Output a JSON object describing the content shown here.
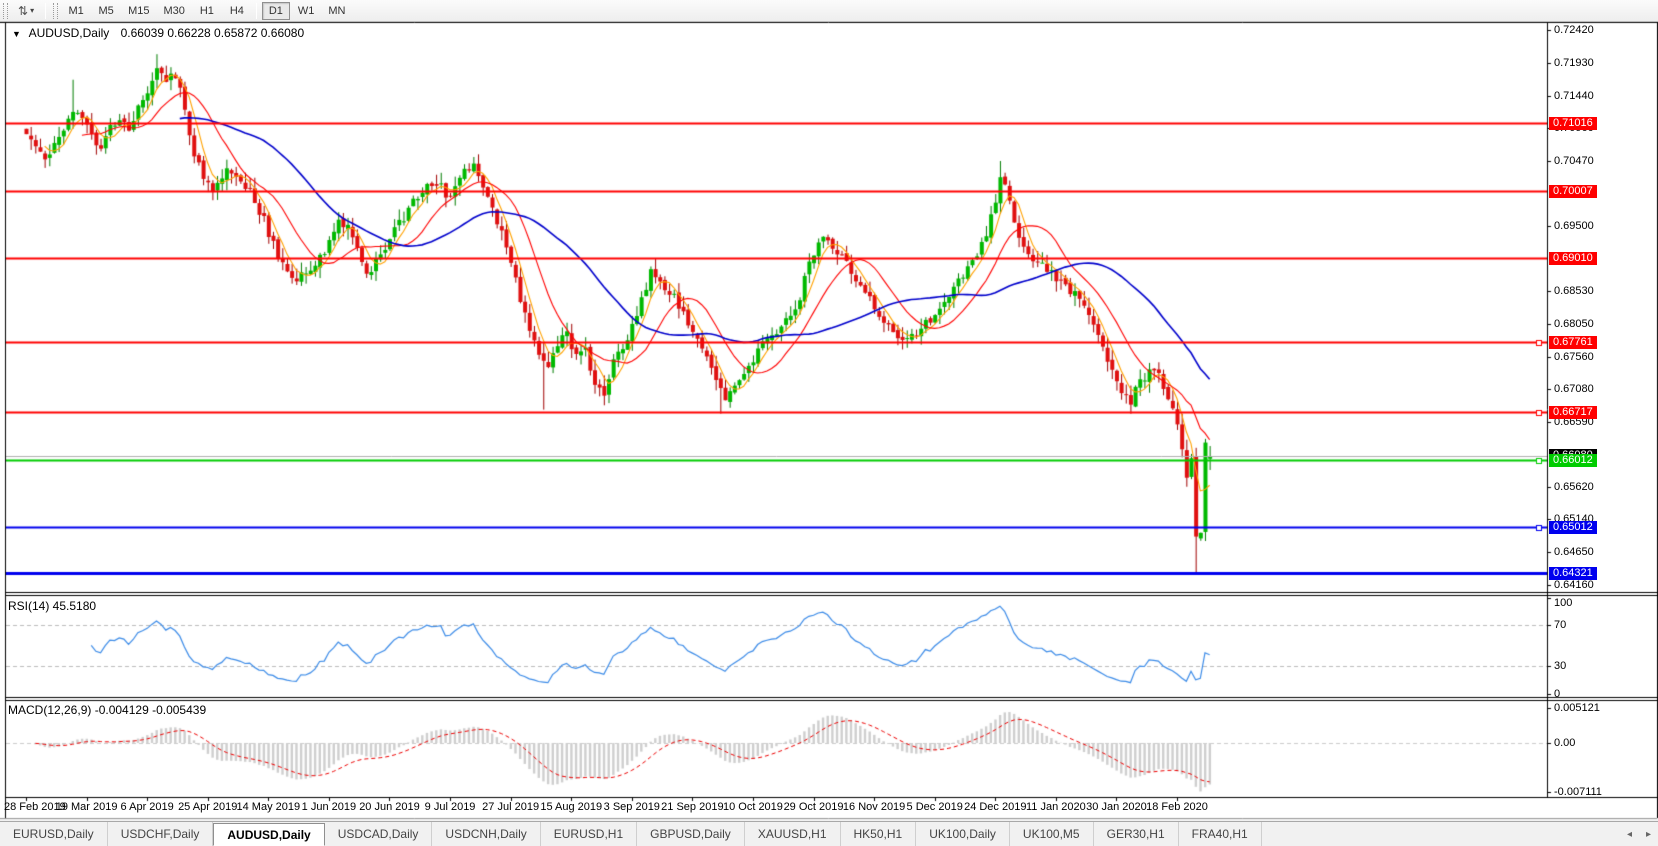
{
  "toolbar": {
    "chart_options_icon": "chart-options-icon",
    "timeframes": [
      "M1",
      "M5",
      "M15",
      "M30",
      "H1",
      "H4",
      "D1",
      "W1",
      "MN"
    ],
    "active_timeframe": "D1"
  },
  "chart": {
    "title_symbol": "AUDUSD,Daily",
    "title_ohlc": "0.66039 0.66228 0.65872 0.66080",
    "last_bar": {
      "open": 0.66039,
      "high": 0.66228,
      "low": 0.65872,
      "close": 0.6608
    }
  },
  "price_axis": {
    "ticks": [
      {
        "label": "0.72420",
        "value": 0.7242
      },
      {
        "label": "0.71930",
        "value": 0.7193
      },
      {
        "label": "0.71440",
        "value": 0.7144
      },
      {
        "label": "0.70960",
        "value": 0.7096
      },
      {
        "label": "0.70470",
        "value": 0.7047
      },
      {
        "label": "0.69500",
        "value": 0.695
      },
      {
        "label": "0.68530",
        "value": 0.6853
      },
      {
        "label": "0.68050",
        "value": 0.6805
      },
      {
        "label": "0.67560",
        "value": 0.6756
      },
      {
        "label": "0.67080",
        "value": 0.6708
      },
      {
        "label": "0.66590",
        "value": 0.6659
      },
      {
        "label": "0.65620",
        "value": 0.6562
      },
      {
        "label": "0.65140",
        "value": 0.6514
      },
      {
        "label": "0.64650",
        "value": 0.6465
      },
      {
        "label": "0.64160",
        "value": 0.6416
      }
    ]
  },
  "levels": [
    {
      "label": "0.71016",
      "value": 0.71016,
      "color": "#ff0000",
      "width": 2,
      "handle": false
    },
    {
      "label": "0.70007",
      "value": 0.70007,
      "color": "#ff0000",
      "width": 2,
      "handle": false
    },
    {
      "label": "0.69010",
      "value": 0.6901,
      "color": "#ff0000",
      "width": 2,
      "handle": false
    },
    {
      "label": "0.67761",
      "value": 0.67761,
      "color": "#ff0000",
      "width": 2,
      "handle": true
    },
    {
      "label": "0.66717",
      "value": 0.66717,
      "color": "#ff0000",
      "width": 2,
      "handle": true
    },
    {
      "label": "0.66012",
      "value": 0.66012,
      "color": "#00cc00",
      "width": 2,
      "handle": true
    },
    {
      "label": "0.65012",
      "value": 0.65012,
      "color": "#0000ee",
      "width": 2,
      "handle": true
    },
    {
      "label": "0.64321",
      "value": 0.64321,
      "color": "#0000ee",
      "width": 3,
      "handle": false
    }
  ],
  "current_price": {
    "label": "0.66080",
    "value": 0.6608,
    "line_color": "#b0b0b0",
    "label_bg": "#000000"
  },
  "rsi": {
    "label": "RSI(14) 45.5180",
    "period": 14,
    "ticks": [
      {
        "label": "100",
        "value": 100
      },
      {
        "label": "70",
        "value": 70
      },
      {
        "label": "30",
        "value": 30
      },
      {
        "label": "0",
        "value": 0
      }
    ],
    "dashed_levels": [
      70,
      30
    ],
    "line_color": "#3b8be8"
  },
  "macd": {
    "label": "MACD(12,26,9) -0.004129 -0.005439",
    "main_value": -0.004129,
    "signal_value": -0.005439,
    "ticks": [
      {
        "label": "0.005121",
        "value": 0.005121
      },
      {
        "label": "0.00",
        "value": 0
      },
      {
        "label": "-0.007111",
        "value": -0.007111
      }
    ],
    "histogram_color": "#cfcfcf",
    "signal_color": "#ee0000"
  },
  "date_axis": {
    "labels": [
      "28 Feb 2019",
      "19 Mar 2019",
      "6 Apr 2019",
      "25 Apr 2019",
      "14 May 2019",
      "1 Jun 2019",
      "20 Jun 2019",
      "9 Jul 2019",
      "27 Jul 2019",
      "15 Aug 2019",
      "3 Sep 2019",
      "21 Sep 2019",
      "10 Oct 2019",
      "29 Oct 2019",
      "16 Nov 2019",
      "5 Dec 2019",
      "24 Dec 2019",
      "11 Jan 2020",
      "30 Jan 2020",
      "18 Feb 2020"
    ],
    "bars_per_label": 13
  },
  "tabs": [
    {
      "label": "EURUSD,Daily",
      "active": false
    },
    {
      "label": "USDCHF,Daily",
      "active": false
    },
    {
      "label": "AUDUSD,Daily",
      "active": true
    },
    {
      "label": "USDCAD,Daily",
      "active": false
    },
    {
      "label": "USDCNH,Daily",
      "active": false
    },
    {
      "label": "EURUSD,H1",
      "active": false
    },
    {
      "label": "GBPUSD,Daily",
      "active": false
    },
    {
      "label": "XAUUSD,H1",
      "active": false
    },
    {
      "label": "HK50,H1",
      "active": false
    },
    {
      "label": "UK100,Daily",
      "active": false
    },
    {
      "label": "UK100,M5",
      "active": false
    },
    {
      "label": "GER30,H1",
      "active": false
    },
    {
      "label": "FRA40,H1",
      "active": false
    }
  ],
  "tab_arrows": {
    "left": "◂",
    "right": "▸"
  },
  "colors": {
    "candle_up": "#00b900",
    "candle_up_border": "#007d00",
    "candle_down": "#e01010",
    "candle_down_border": "#a00000",
    "ma_fast": "#ffa200",
    "ma_mid": "#ff0000",
    "ma_slow": "#0000cc",
    "panel_border": "#000000",
    "background": "#ffffff"
  },
  "chart_data": {
    "type": "candlestick",
    "symbol": "AUDUSD",
    "timeframe": "Daily",
    "bar_count": 255,
    "close_anchors": [
      [
        0,
        0.7095
      ],
      [
        2,
        0.7065
      ],
      [
        4,
        0.7045
      ],
      [
        6,
        0.708
      ],
      [
        8,
        0.7095
      ],
      [
        10,
        0.712
      ],
      [
        12,
        0.7105
      ],
      [
        14,
        0.7085
      ],
      [
        16,
        0.7065
      ],
      [
        18,
        0.7095
      ],
      [
        20,
        0.711
      ],
      [
        22,
        0.7085
      ],
      [
        24,
        0.7125
      ],
      [
        26,
        0.715
      ],
      [
        28,
        0.719
      ],
      [
        30,
        0.7165
      ],
      [
        32,
        0.7178
      ],
      [
        34,
        0.712
      ],
      [
        36,
        0.706
      ],
      [
        38,
        0.702
      ],
      [
        40,
        0.7
      ],
      [
        43,
        0.7032
      ],
      [
        46,
        0.7012
      ],
      [
        49,
        0.6992
      ],
      [
        52,
        0.694
      ],
      [
        55,
        0.689
      ],
      [
        58,
        0.6872
      ],
      [
        61,
        0.6882
      ],
      [
        64,
        0.6912
      ],
      [
        67,
        0.6955
      ],
      [
        70,
        0.694
      ],
      [
        73,
        0.6878
      ],
      [
        76,
        0.6905
      ],
      [
        79,
        0.6945
      ],
      [
        82,
        0.6975
      ],
      [
        85,
        0.7
      ],
      [
        88,
        0.7018
      ],
      [
        91,
        0.6988
      ],
      [
        94,
        0.7035
      ],
      [
        96,
        0.7042
      ],
      [
        98,
        0.7002
      ],
      [
        100,
        0.6972
      ],
      [
        102,
        0.694
      ],
      [
        104,
        0.6898
      ],
      [
        106,
        0.684
      ],
      [
        108,
        0.6788
      ],
      [
        110,
        0.6758
      ],
      [
        112,
        0.6742
      ],
      [
        114,
        0.6772
      ],
      [
        116,
        0.6788
      ],
      [
        118,
        0.6755
      ],
      [
        120,
        0.6768
      ],
      [
        122,
        0.6715
      ],
      [
        124,
        0.6698
      ],
      [
        126,
        0.6745
      ],
      [
        128,
        0.6772
      ],
      [
        130,
        0.6798
      ],
      [
        132,
        0.6842
      ],
      [
        134,
        0.6878
      ],
      [
        136,
        0.687
      ],
      [
        138,
        0.6855
      ],
      [
        140,
        0.6835
      ],
      [
        142,
        0.681
      ],
      [
        144,
        0.678
      ],
      [
        146,
        0.6752
      ],
      [
        148,
        0.6718
      ],
      [
        150,
        0.6688
      ],
      [
        152,
        0.6712
      ],
      [
        154,
        0.6732
      ],
      [
        156,
        0.6752
      ],
      [
        158,
        0.6772
      ],
      [
        160,
        0.6788
      ],
      [
        162,
        0.6802
      ],
      [
        164,
        0.6822
      ],
      [
        166,
        0.6842
      ],
      [
        168,
        0.6902
      ],
      [
        171,
        0.6932
      ],
      [
        174,
        0.6915
      ],
      [
        177,
        0.6878
      ],
      [
        180,
        0.685
      ],
      [
        182,
        0.683
      ],
      [
        184,
        0.6806
      ],
      [
        186,
        0.6786
      ],
      [
        188,
        0.6775
      ],
      [
        190,
        0.6782
      ],
      [
        192,
        0.6796
      ],
      [
        194,
        0.6812
      ],
      [
        196,
        0.6826
      ],
      [
        198,
        0.6846
      ],
      [
        200,
        0.6866
      ],
      [
        202,
        0.6886
      ],
      [
        204,
        0.6906
      ],
      [
        206,
        0.694
      ],
      [
        208,
        0.6992
      ],
      [
        209,
        0.703
      ],
      [
        211,
        0.6986
      ],
      [
        213,
        0.6932
      ],
      [
        215,
        0.6906
      ],
      [
        217,
        0.6896
      ],
      [
        219,
        0.6886
      ],
      [
        221,
        0.6876
      ],
      [
        223,
        0.6862
      ],
      [
        225,
        0.685
      ],
      [
        227,
        0.683
      ],
      [
        229,
        0.6806
      ],
      [
        231,
        0.6776
      ],
      [
        233,
        0.6736
      ],
      [
        235,
        0.6702
      ],
      [
        237,
        0.669
      ],
      [
        239,
        0.6716
      ],
      [
        241,
        0.6736
      ],
      [
        243,
        0.6726
      ],
      [
        245,
        0.6696
      ],
      [
        247,
        0.6656
      ],
      [
        248,
        0.6622
      ],
      [
        249,
        0.6576
      ],
      [
        250,
        0.66
      ],
      [
        251,
        0.6482
      ],
      [
        252,
        0.6496
      ],
      [
        253,
        0.662
      ],
      [
        254,
        0.6608
      ]
    ],
    "wick_highs": {
      "10": 0.7168,
      "28": 0.7206,
      "96": 0.7047,
      "209": 0.7047
    },
    "wick_lows": {
      "58": 0.6865,
      "111": 0.6677,
      "149": 0.6671,
      "251": 0.6434
    },
    "moving_averages": [
      {
        "name": "fast",
        "period": 5,
        "color": "#ffa200"
      },
      {
        "name": "mid",
        "period": 13,
        "color": "#ff0000"
      },
      {
        "name": "slow",
        "period": 34,
        "color": "#0000cc"
      }
    ],
    "axis_top": 0.7242,
    "axis_bottom": 0.6416
  }
}
